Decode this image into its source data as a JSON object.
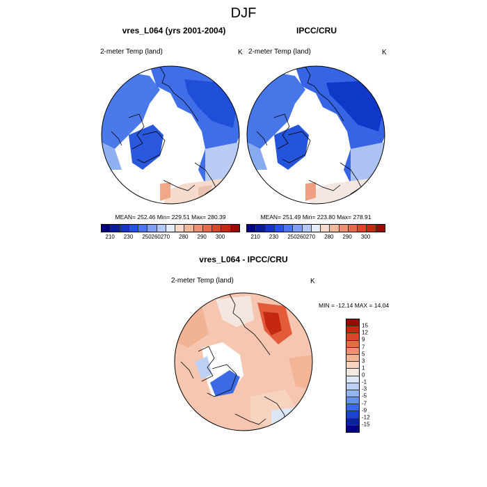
{
  "season_title": "DJF",
  "panels": [
    {
      "title": "vres_L064 (yrs 2001-2004)",
      "variable": "2-meter Temp (land)",
      "units": "K",
      "stats": "MEAN= 252.46  Min= 229.51  Max= 280.39"
    },
    {
      "title": "IPCC/CRU",
      "variable": "2-meter Temp (land)",
      "units": "K",
      "stats": "MEAN= 251.49  Min= 223.80  Max= 278.91"
    },
    {
      "title": "vres_L064 - IPCC/CRU",
      "variable": "2-meter Temp (land)",
      "units": "K",
      "stats": "MIN = -12.14 MAX =  14.04"
    }
  ],
  "abs_colorbar": {
    "colors": [
      "#00007f",
      "#0a1aa0",
      "#1435c8",
      "#2452e6",
      "#4a74f0",
      "#7ea0f4",
      "#b3c8f6",
      "#e4ecf7",
      "#f6d8c8",
      "#f1b89c",
      "#ec9070",
      "#e66a48",
      "#dc4628",
      "#c42810",
      "#960a00"
    ],
    "tick_labels": [
      "210",
      "230",
      "250",
      "260",
      "270",
      "280",
      "290",
      "300"
    ],
    "tick_positions": [
      1,
      3,
      5,
      6,
      7,
      9,
      11,
      13
    ]
  },
  "diff_colorbar": {
    "colors": [
      "#960a00",
      "#c42810",
      "#dc4628",
      "#ec6a40",
      "#f09070",
      "#f4b496",
      "#f8d4c0",
      "#f4e8e2",
      "#dde8f6",
      "#bcd0f6",
      "#94b4f2",
      "#6890ee",
      "#3c6ae4",
      "#1a44d0",
      "#0a22a8",
      "#000080"
    ],
    "tick_labels": [
      "15",
      "12",
      "9",
      "7",
      "5",
      "3",
      "1",
      "0",
      "-1",
      "-3",
      "-5",
      "-7",
      "-9",
      "-12",
      "-15"
    ]
  }
}
